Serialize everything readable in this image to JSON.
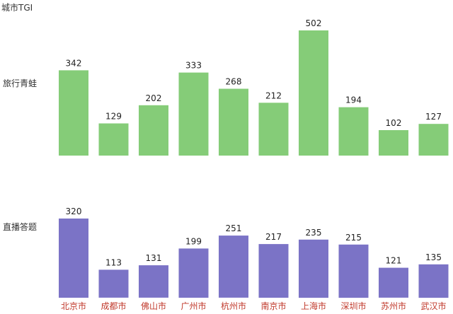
{
  "chart_data": {
    "type": "bar",
    "title": "城市TGI",
    "categories": [
      "北京市",
      "成都市",
      "佛山市",
      "广州市",
      "杭州市",
      "南京市",
      "上海市",
      "深圳市",
      "苏州市",
      "武汉市"
    ],
    "series": [
      {
        "name": "旅行青蛙",
        "values": [
          342,
          129,
          202,
          333,
          268,
          212,
          502,
          194,
          102,
          127
        ],
        "color": "#85CC78"
      },
      {
        "name": "直播答题",
        "values": [
          320,
          113,
          131,
          199,
          251,
          217,
          235,
          215,
          121,
          135
        ],
        "color": "#7B73C6"
      }
    ],
    "layout": "small-multiples-stacked-vertically",
    "data_labels": true,
    "grid": false,
    "axis_text_color": "#c0392b"
  }
}
